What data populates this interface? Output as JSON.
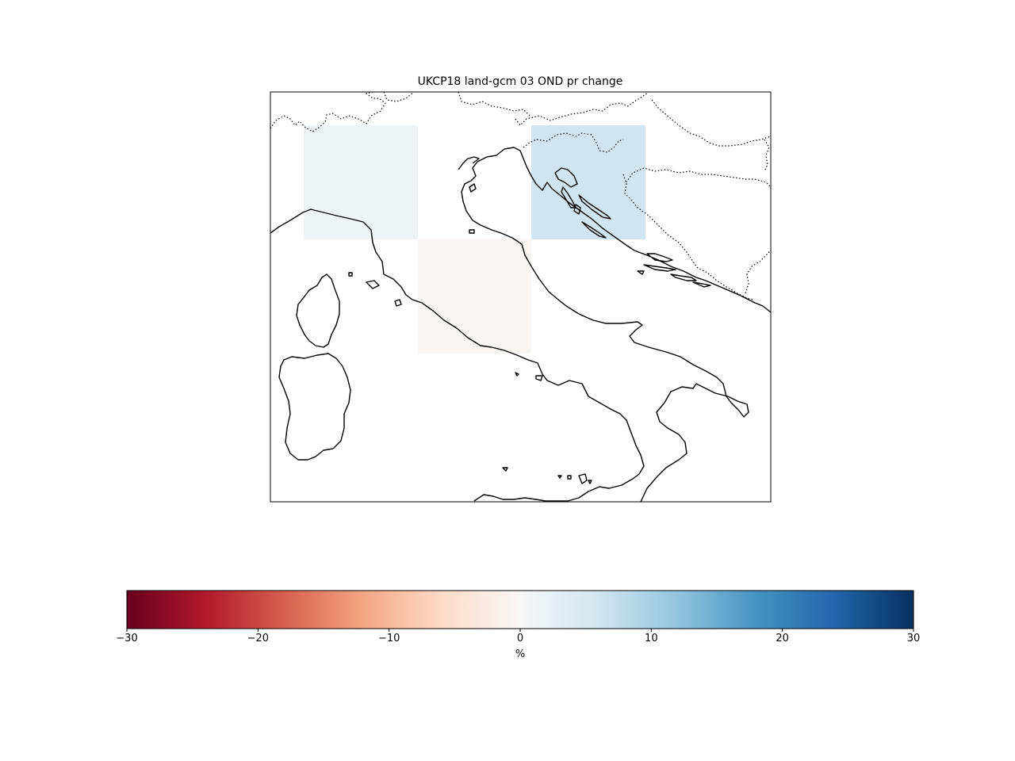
{
  "map": {
    "title": "UKCP18 land-gcm 03 OND pr change",
    "grid_cells": [
      {
        "id": "northwest",
        "value": 1.5
      },
      {
        "id": "northeast",
        "value": 6.0
      },
      {
        "id": "central",
        "value": -0.5
      }
    ]
  },
  "colorbar": {
    "colormap": "RdBu",
    "min": -30,
    "max": 30,
    "ticks": [
      -30,
      -20,
      -10,
      0,
      10,
      20,
      30
    ],
    "tick_labels": [
      "−30",
      "−20",
      "−10",
      "0",
      "10",
      "20",
      "30"
    ],
    "unit_label": "%",
    "colors": [
      "#67001f",
      "#b2182b",
      "#d6604d",
      "#f4a582",
      "#fddbc7",
      "#f7f7f7",
      "#d1e5f0",
      "#92c5de",
      "#4393c3",
      "#2166ac",
      "#053061"
    ]
  }
}
